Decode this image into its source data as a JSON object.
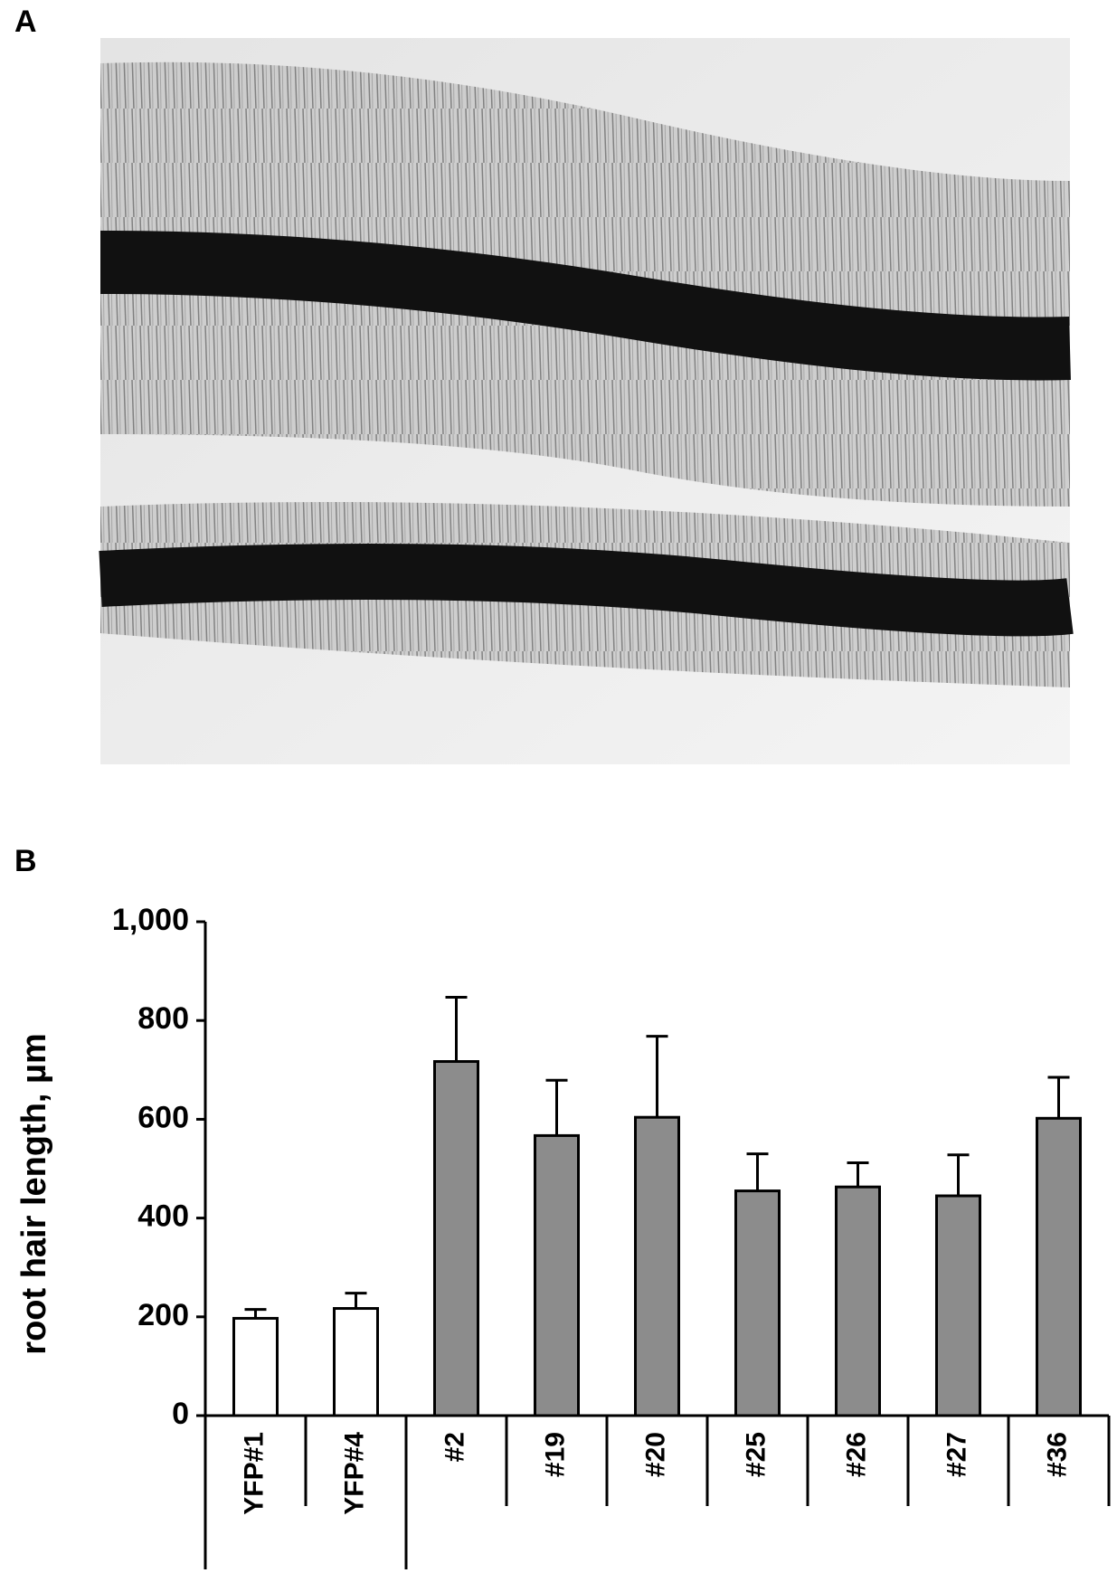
{
  "panels": [
    "A",
    "B"
  ],
  "chart_data": {
    "type": "bar",
    "y_label": "root hair length, µm",
    "categories": [
      "YFP#1",
      "YFP#4",
      "#2",
      "#19",
      "#20",
      "#25",
      "#26",
      "#27",
      "#36"
    ],
    "values": [
      197,
      217,
      717,
      567,
      604,
      455,
      463,
      445,
      602
    ],
    "errors": [
      18,
      31,
      130,
      112,
      164,
      75,
      49,
      83,
      83
    ],
    "colors": [
      "#ffffff",
      "#ffffff",
      "#8c8c8c",
      "#8c8c8c",
      "#8c8c8c",
      "#8c8c8c",
      "#8c8c8c",
      "#8c8c8c",
      "#8c8c8c"
    ],
    "ylim": [
      0,
      1000
    ],
    "yticks": [
      0,
      200,
      400,
      600,
      800,
      {
        "value": 1000,
        "label": "1,000"
      }
    ]
  }
}
